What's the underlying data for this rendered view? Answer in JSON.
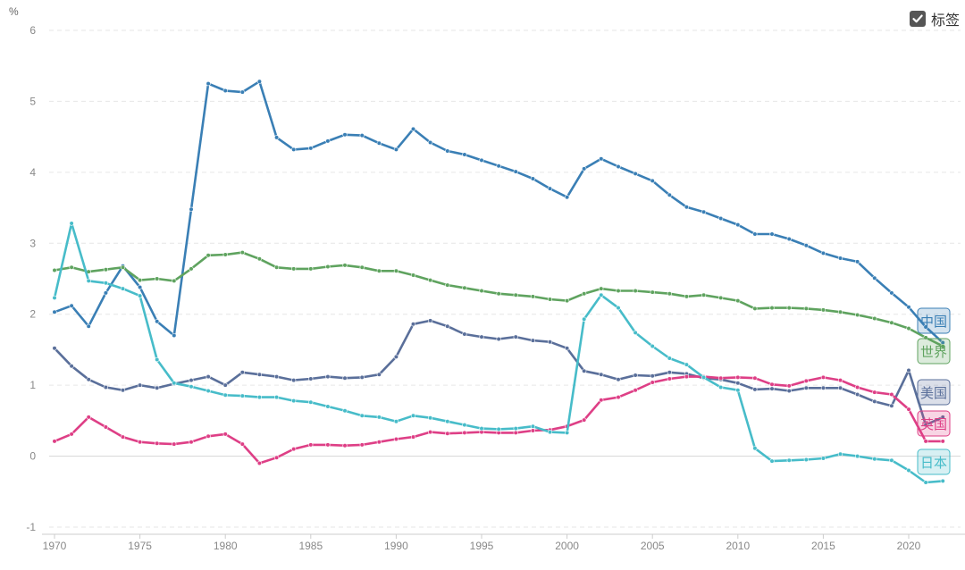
{
  "toggle": {
    "label": "标签",
    "checked": true
  },
  "chart_data": {
    "type": "line",
    "title": "",
    "xlabel": "",
    "ylabel": "%",
    "xlim": [
      1970,
      2022
    ],
    "ylim": [
      -1,
      6
    ],
    "x_ticks": [
      1970,
      1975,
      1980,
      1985,
      1990,
      1995,
      2000,
      2005,
      2010,
      2015,
      2020
    ],
    "y_ticks": [
      -1,
      0,
      1,
      2,
      3,
      4,
      5,
      6
    ],
    "grid": true,
    "legend": "end-of-line labels",
    "x": [
      1970,
      1971,
      1972,
      1973,
      1974,
      1975,
      1976,
      1977,
      1978,
      1979,
      1980,
      1981,
      1982,
      1983,
      1984,
      1985,
      1986,
      1987,
      1988,
      1989,
      1990,
      1991,
      1992,
      1993,
      1994,
      1995,
      1996,
      1997,
      1998,
      1999,
      2000,
      2001,
      2002,
      2003,
      2004,
      2005,
      2006,
      2007,
      2008,
      2009,
      2010,
      2011,
      2012,
      2013,
      2014,
      2015,
      2016,
      2017,
      2018,
      2019,
      2020,
      2021,
      2022
    ],
    "series": [
      {
        "name": "中国",
        "color": "#3a7fb5",
        "values": [
          2.03,
          2.12,
          1.83,
          2.3,
          2.68,
          2.38,
          1.9,
          1.7,
          3.48,
          5.25,
          5.15,
          5.13,
          5.28,
          4.49,
          4.32,
          4.34,
          4.44,
          4.53,
          4.52,
          4.41,
          4.32,
          4.61,
          4.42,
          4.3,
          4.25,
          4.17,
          4.09,
          4.01,
          3.91,
          3.77,
          3.65,
          4.05,
          4.19,
          4.08,
          3.98,
          3.88,
          3.68,
          3.51,
          3.44,
          3.35,
          3.26,
          3.13,
          3.13,
          3.06,
          2.97,
          2.86,
          2.79,
          2.74,
          2.51,
          2.3,
          2.1,
          1.82,
          1.6
        ]
      },
      {
        "name": "世界",
        "color": "#5fa35f",
        "values": [
          2.62,
          2.66,
          2.6,
          2.63,
          2.66,
          2.48,
          2.5,
          2.47,
          2.64,
          2.83,
          2.84,
          2.87,
          2.78,
          2.66,
          2.64,
          2.64,
          2.67,
          2.69,
          2.66,
          2.61,
          2.61,
          2.55,
          2.48,
          2.41,
          2.37,
          2.33,
          2.29,
          2.27,
          2.25,
          2.21,
          2.19,
          2.29,
          2.36,
          2.33,
          2.33,
          2.31,
          2.29,
          2.25,
          2.27,
          2.23,
          2.19,
          2.08,
          2.09,
          2.09,
          2.08,
          2.06,
          2.03,
          1.99,
          1.94,
          1.88,
          1.8,
          1.67,
          1.55
        ]
      },
      {
        "name": "美国",
        "color": "#5a6f9a",
        "values": [
          1.52,
          1.27,
          1.08,
          0.97,
          0.93,
          1.0,
          0.96,
          1.02,
          1.07,
          1.12,
          1.0,
          1.18,
          1.15,
          1.12,
          1.07,
          1.09,
          1.12,
          1.1,
          1.11,
          1.15,
          1.4,
          1.86,
          1.91,
          1.83,
          1.72,
          1.68,
          1.65,
          1.68,
          1.63,
          1.61,
          1.52,
          1.2,
          1.15,
          1.08,
          1.14,
          1.13,
          1.18,
          1.16,
          1.1,
          1.08,
          1.03,
          0.94,
          0.95,
          0.92,
          0.96,
          0.96,
          0.96,
          0.87,
          0.77,
          0.71,
          1.21,
          0.44,
          0.55
        ]
      },
      {
        "name": "英国",
        "color": "#de3f86",
        "values": [
          0.21,
          0.31,
          0.55,
          0.41,
          0.27,
          0.2,
          0.18,
          0.17,
          0.2,
          0.28,
          0.31,
          0.17,
          -0.1,
          -0.02,
          0.1,
          0.16,
          0.16,
          0.15,
          0.16,
          0.2,
          0.24,
          0.27,
          0.34,
          0.32,
          0.33,
          0.34,
          0.33,
          0.33,
          0.36,
          0.37,
          0.42,
          0.51,
          0.79,
          0.83,
          0.93,
          1.04,
          1.09,
          1.12,
          1.12,
          1.1,
          1.11,
          1.1,
          1.01,
          0.99,
          1.06,
          1.11,
          1.07,
          0.97,
          0.9,
          0.87,
          0.66,
          0.21,
          0.21
        ]
      },
      {
        "name": "日本",
        "color": "#47bcc9",
        "values": [
          2.23,
          3.28,
          2.47,
          2.44,
          2.36,
          2.26,
          1.36,
          1.03,
          0.98,
          0.92,
          0.86,
          0.85,
          0.83,
          0.83,
          0.78,
          0.76,
          0.7,
          0.64,
          0.57,
          0.55,
          0.49,
          0.57,
          0.54,
          0.49,
          0.44,
          0.39,
          0.38,
          0.39,
          0.42,
          0.34,
          0.33,
          1.93,
          2.27,
          2.09,
          1.74,
          1.55,
          1.38,
          1.29,
          1.11,
          0.97,
          0.93,
          0.11,
          -0.07,
          -0.06,
          -0.05,
          -0.03,
          0.03,
          0.0,
          -0.04,
          -0.06,
          -0.2,
          -0.37,
          -0.35
        ]
      }
    ]
  }
}
